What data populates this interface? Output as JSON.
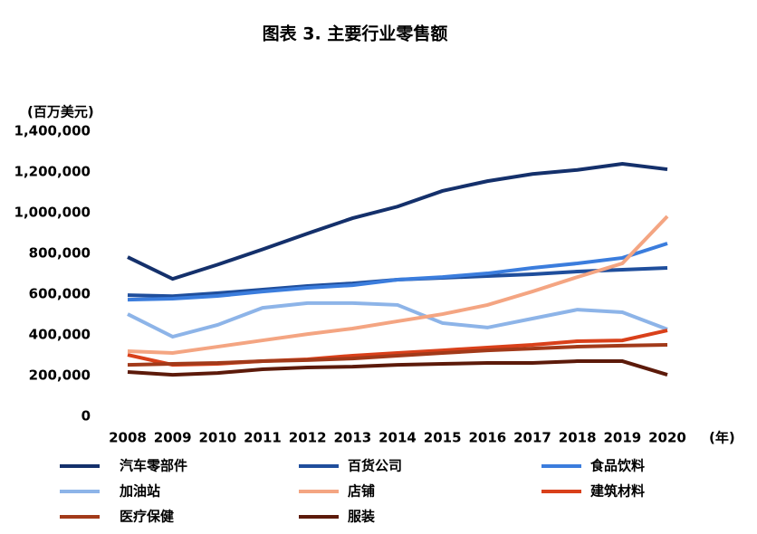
{
  "chart_data": {
    "type": "line",
    "title": "图表 3. 主要行业零售额",
    "y_unit": "(百万美元)",
    "x_unit": "(年)",
    "categories": [
      "2008",
      "2009",
      "2010",
      "2011",
      "2012",
      "2013",
      "2014",
      "2015",
      "2016",
      "2017",
      "2018",
      "2019",
      "2020"
    ],
    "ylim": [
      0,
      1400000
    ],
    "yticks": [
      0,
      {
        "value": 200000,
        "label": "200,000"
      },
      {
        "value": 400000,
        "label": "400,000"
      },
      {
        "value": 600000,
        "label": "600,000"
      },
      {
        "value": 800000,
        "label": "800,000"
      },
      {
        "value": 1000000,
        "label": "1,000,000"
      },
      {
        "value": 1200000,
        "label": "1,200,000"
      },
      {
        "value": 1400000,
        "label": "1,400,000"
      }
    ],
    "series": [
      {
        "name": "汽车零部件",
        "color": "#14306b",
        "values": [
          782000,
          675000,
          745000,
          820000,
          898000,
          973000,
          1030000,
          1107000,
          1155000,
          1190000,
          1210000,
          1240000,
          1213000
        ]
      },
      {
        "name": "百货公司",
        "color": "#1f4e9c",
        "values": [
          595000,
          590000,
          605000,
          622000,
          640000,
          653000,
          671000,
          680000,
          689000,
          698000,
          711000,
          720000,
          729000
        ]
      },
      {
        "name": "食品饮料",
        "color": "#3b7ddd",
        "values": [
          573000,
          578000,
          591000,
          613000,
          631000,
          644000,
          671000,
          684000,
          702000,
          729000,
          751000,
          778000,
          849000
        ]
      },
      {
        "name": "加油站",
        "color": "#8db4e8",
        "values": [
          502000,
          391000,
          449000,
          533000,
          556000,
          556000,
          547000,
          458000,
          436000,
          480000,
          524000,
          511000,
          427000
        ]
      },
      {
        "name": "店铺",
        "color": "#f4a582",
        "values": [
          320000,
          311000,
          342000,
          373000,
          404000,
          431000,
          467000,
          502000,
          547000,
          613000,
          684000,
          751000,
          982000
        ]
      },
      {
        "name": "建筑材料",
        "color": "#d9401a",
        "values": [
          302000,
          253000,
          258000,
          271000,
          280000,
          298000,
          311000,
          324000,
          338000,
          351000,
          369000,
          373000,
          422000
        ]
      },
      {
        "name": "医疗保健",
        "color": "#a23a1a",
        "values": [
          253000,
          258000,
          262000,
          271000,
          276000,
          284000,
          298000,
          311000,
          324000,
          333000,
          342000,
          347000,
          351000
        ]
      },
      {
        "name": "服装",
        "color": "#5c1a0a",
        "values": [
          218000,
          204000,
          213000,
          231000,
          240000,
          244000,
          253000,
          258000,
          262000,
          262000,
          271000,
          271000,
          204000
        ]
      }
    ]
  }
}
